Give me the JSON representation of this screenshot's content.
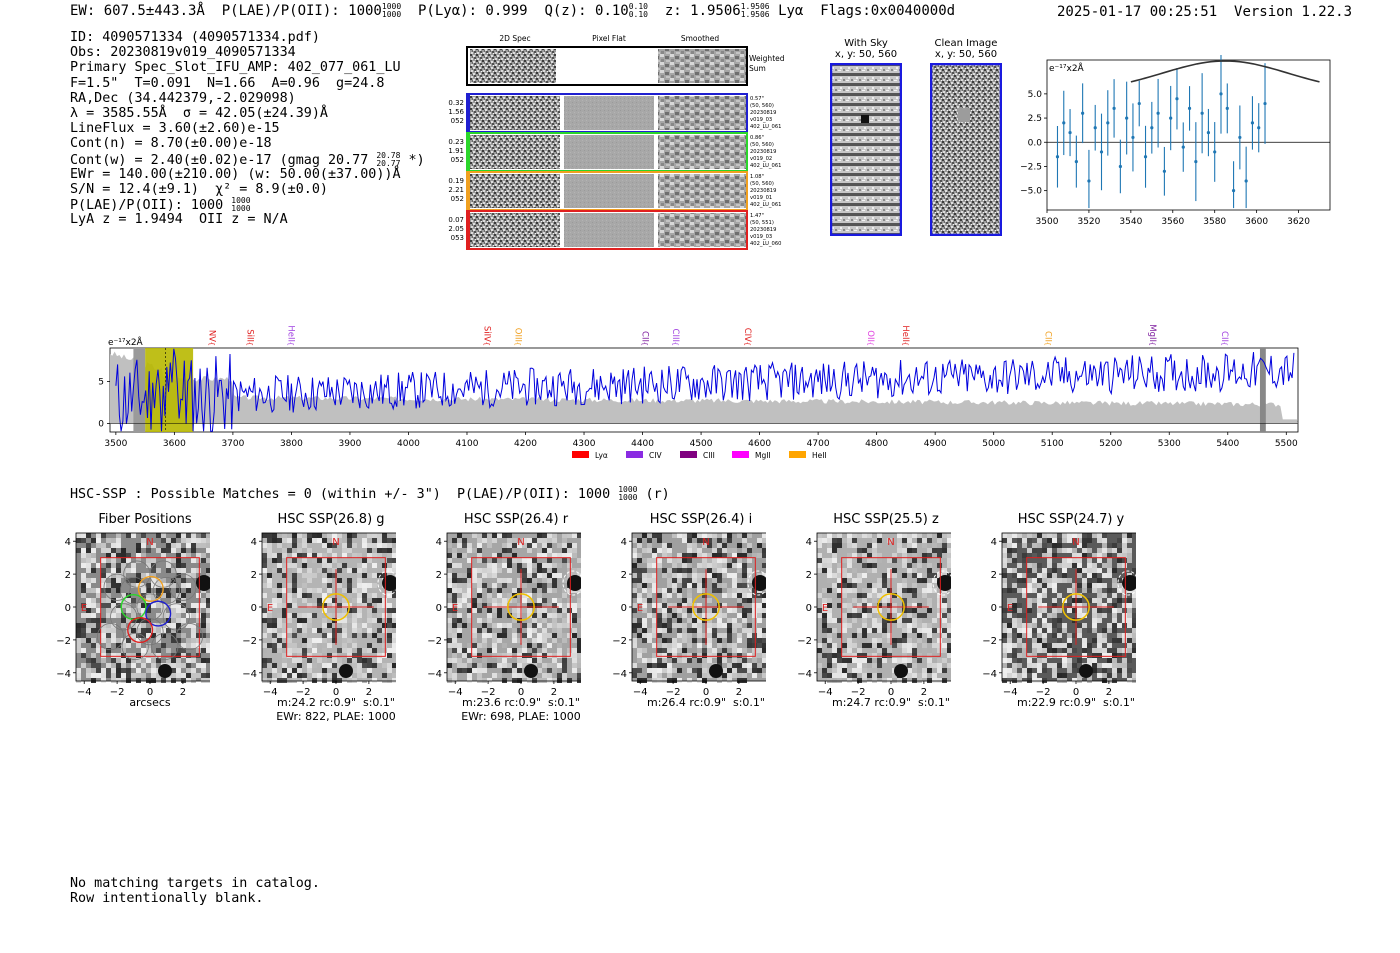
{
  "header": {
    "ew": "EW: 607.5±443.3Å",
    "plae": "P(LAE)/P(OII): 1000",
    "plae_sup": "1000",
    "plae_sub": "1000",
    "plya": "P(Lyα): 0.999",
    "qz": "Q(z): 0.10",
    "qz_sup": "0.10",
    "qz_sub": "0.10",
    "z": "z: 1.9506",
    "z_sup": "1.9506",
    "z_sub": "1.9506",
    "line": "Lyα",
    "flags": "Flags:0x0040000d",
    "timestamp": "2025-01-17 00:25:51",
    "version": "Version 1.22.3"
  },
  "info": {
    "id": "ID: 4090571334 (4090571334.pdf)",
    "obs": "Obs: 20230819v019_4090571334",
    "primary": "Primary Spec_Slot_IFU_AMP: 402_077_061_LU",
    "params": "F=1.5\"  T=0.091  N=1.66  A=0.96  g=24.8",
    "radec": "RA,Dec (34.442379,-2.029098)",
    "lambda": "λ = 3585.55Å  σ = 42.05(±24.39)Å",
    "lineflux": "LineFlux = 3.60(±2.60)e-15",
    "contn": "Cont(n) = 8.70(±0.00)e-18",
    "contw": "Cont(w) = 2.40(±0.02)e-17 (gmag 20.77",
    "contw_sup": "20.78",
    "contw_sub": "20.77",
    "contw_end": "*)",
    "ewr": "EWr = 140.00(±210.00) (w: 50.00(±37.00))Å",
    "sn": "S/N = 12.4(±9.1)  χ² = 8.9(±0.0)",
    "plae": "P(LAE)/P(OII): 1000",
    "plae_sup": "1000",
    "plae_sub": "1000",
    "lyaz": "LyA z = 1.9494  OII z = N/A"
  },
  "spec2d": {
    "headers": [
      "2D Spec",
      "Pixel Flat",
      "Smoothed"
    ],
    "weighted_label": [
      "Weighted",
      "Sum"
    ],
    "rows": [
      {
        "left": [
          "0.32",
          "1.56",
          "052"
        ],
        "right": [
          "0.57\"",
          "(50, 560)",
          "20230819",
          "v019_03",
          "402_LU_061"
        ],
        "color": "#1f1fd0"
      },
      {
        "left": [
          "0.23",
          "1.91",
          "052"
        ],
        "right": [
          "0.86\"",
          "(50, 560)",
          "20230819",
          "v019_02",
          "402_LU_061"
        ],
        "color": "#2bd62b"
      },
      {
        "left": [
          "0.19",
          "2.21",
          "052"
        ],
        "right": [
          "1.08\"",
          "(50, 560)",
          "20230819",
          "v019_01",
          "402_LU_061"
        ],
        "color": "#f0a020"
      },
      {
        "left": [
          "0.07",
          "2.05",
          "053"
        ],
        "right": [
          "1.47\"",
          "(50, 551)",
          "20230819",
          "v019_03",
          "402_LU_060"
        ],
        "color": "#e02020"
      }
    ]
  },
  "cutouts_top": {
    "with_sky": [
      "With Sky",
      "x, y: 50, 560"
    ],
    "clean": [
      "Clean Image",
      "x, y: 50, 560"
    ]
  },
  "zoom_chart": {
    "unit": "e⁻¹⁷x2Å",
    "xticks": [
      3500,
      3520,
      3540,
      3560,
      3580,
      3600,
      3620
    ],
    "yticks": [
      5.0,
      2.5,
      0.0,
      -2.5,
      -5.0
    ],
    "ytick_labels": [
      "5.0",
      "2.5",
      "0.0",
      "−2.5",
      "−5.0"
    ]
  },
  "full_spec": {
    "unit": "e⁻¹⁷x2Å",
    "xticks": [
      3500,
      3600,
      3700,
      3800,
      3900,
      4000,
      4100,
      4200,
      4300,
      4400,
      4500,
      4600,
      4700,
      4800,
      4900,
      5000,
      5100,
      5200,
      5300,
      5400,
      5500
    ],
    "yticks": [
      "5",
      "0"
    ],
    "line_labels": [
      {
        "name": "NV",
        "wave": 3655,
        "color": "#e02020"
      },
      {
        "name": "SiII",
        "wave": 3720,
        "color": "#e02020"
      },
      {
        "name": "HeII",
        "wave": 3790,
        "color": "#a040e0"
      },
      {
        "name": "SiIV",
        "wave": 4125,
        "color": "#e02020"
      },
      {
        "name": "OIII",
        "wave": 4178,
        "color": "#f0a020"
      },
      {
        "name": "CII",
        "wave": 4395,
        "color": "#8020a0"
      },
      {
        "name": "CIII",
        "wave": 4447,
        "color": "#a040e0"
      },
      {
        "name": "CIV",
        "wave": 4570,
        "color": "#e02020"
      },
      {
        "name": "OII",
        "wave": 4780,
        "color": "#e040e0"
      },
      {
        "name": "HeII",
        "wave": 4840,
        "color": "#e02020"
      },
      {
        "name": "CII",
        "wave": 5083,
        "color": "#f0a020"
      },
      {
        "name": "MgII",
        "wave": 5262,
        "color": "#8020a0"
      },
      {
        "name": "CII",
        "wave": 5385,
        "color": "#a040e0"
      }
    ],
    "legend": [
      {
        "name": "Lyα",
        "color": "#ff0000"
      },
      {
        "name": "CIV",
        "color": "#8a2be2"
      },
      {
        "name": "CIII",
        "color": "#800080"
      },
      {
        "name": "MgII",
        "color": "#ff00ff"
      },
      {
        "name": "HeII",
        "color": "#ffa500"
      }
    ]
  },
  "hsc": {
    "title": "HSC-SSP : Possible Matches = 0 (within +/- 3\")  P(LAE)/P(OII): 1000",
    "title_sup": "1000",
    "title_sub": "1000",
    "title_end": "(r)",
    "axis_label": "arcsecs",
    "ticks": [
      "4",
      "2",
      "0",
      "−2",
      "−4"
    ],
    "xticks": [
      "−4",
      "−2",
      "0",
      "2",
      "4"
    ],
    "panels": [
      {
        "title": "Fiber Positions",
        "caption": [
          "arcsecs"
        ]
      },
      {
        "title": "HSC SSP(26.8) g",
        "caption": [
          "m:24.2 rc:0.9\"  s:0.1\"",
          "EWr: 822, PLAE: 1000"
        ]
      },
      {
        "title": "HSC SSP(26.4) r",
        "caption": [
          "m:23.6 rc:0.9\"  s:0.1\"",
          "EWr: 698, PLAE: 1000"
        ]
      },
      {
        "title": "HSC SSP(26.4) i",
        "caption": [
          "m:26.4 rc:0.9\"  s:0.1\""
        ]
      },
      {
        "title": "HSC SSP(25.5) z",
        "caption": [
          "m:24.7 rc:0.9\"  s:0.1\""
        ]
      },
      {
        "title": "HSC SSP(24.7) y",
        "caption": [
          "m:22.9 rc:0.9\"  s:0.1\""
        ]
      }
    ],
    "compass_n": "N",
    "compass_e": "E"
  },
  "footer": [
    "No matching targets in catalog.",
    "Row intentionally blank."
  ],
  "chart_data": [
    {
      "type": "scatter",
      "title": "",
      "xlabel": "",
      "ylabel": "e-17 x2Å",
      "xlim": [
        3500,
        3635
      ],
      "ylim": [
        -7,
        8.5
      ],
      "series": [
        {
          "name": "zoom flux with error bars",
          "x": [
            3505,
            3508,
            3511,
            3514,
            3517,
            3520,
            3523,
            3526,
            3529,
            3532,
            3535,
            3538,
            3541,
            3544,
            3547,
            3550,
            3553,
            3556,
            3559,
            3562,
            3565,
            3568,
            3571,
            3574,
            3577,
            3580,
            3583,
            3586,
            3589,
            3592,
            3595,
            3598,
            3601,
            3604
          ],
          "y": [
            -1.5,
            2.0,
            1.0,
            -2.0,
            3.0,
            -4.0,
            1.5,
            -1.0,
            2.0,
            3.5,
            -2.5,
            2.5,
            0.5,
            4.0,
            -1.5,
            1.5,
            3.0,
            -3.0,
            2.5,
            4.5,
            -0.5,
            3.5,
            -2.0,
            3.0,
            1.0,
            -1.0,
            5.0,
            3.5,
            -5.0,
            0.5,
            -4.0,
            2.0,
            1.5,
            4.0
          ]
        }
      ],
      "model_curve": {
        "name": "model",
        "x": [
          3540,
          3560,
          3585,
          3610,
          3630
        ],
        "y": [
          5.5,
          7.5,
          8.4,
          7.5,
          5.3
        ]
      }
    },
    {
      "type": "line",
      "title": "",
      "xlabel": "",
      "ylabel": "e-17 x2Å",
      "xlim": [
        3490,
        5520
      ],
      "ylim": [
        -1,
        9
      ],
      "series": [
        {
          "name": "flux",
          "color": "#0000dd"
        },
        {
          "name": "error",
          "color": "#c0c0c0"
        }
      ]
    }
  ]
}
